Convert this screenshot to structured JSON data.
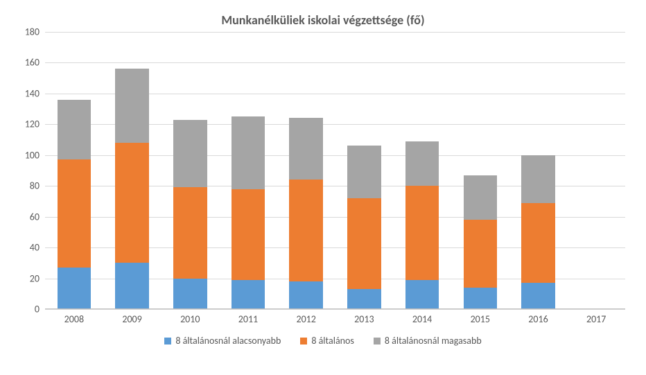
{
  "chart": {
    "type": "stacked-bar",
    "title": "Munkanélküliek iskolai végzettsége (fő)",
    "title_fontsize": 18,
    "title_fontweight": "bold",
    "background_color": "#ffffff",
    "grid_color": "#d9d9d9",
    "axis_color": "#bfbfbf",
    "text_color": "#595959",
    "label_fontsize": 14,
    "ylim": [
      0,
      180
    ],
    "ytick_step": 20,
    "yticks": [
      0,
      20,
      40,
      60,
      80,
      100,
      120,
      140,
      160,
      180
    ],
    "categories": [
      "2008",
      "2009",
      "2010",
      "2011",
      "2012",
      "2013",
      "2014",
      "2015",
      "2016",
      "2017"
    ],
    "bar_width": 0.58,
    "series": [
      {
        "key": "low",
        "label": "8 általánosnál alacsonyabb",
        "color": "#5b9bd5"
      },
      {
        "key": "mid",
        "label": "8 általános",
        "color": "#ed7d31"
      },
      {
        "key": "high",
        "label": "8 általánosnál magasabb",
        "color": "#a5a5a5"
      }
    ],
    "data": [
      {
        "low": 27,
        "mid": 70,
        "high": 39
      },
      {
        "low": 30,
        "mid": 78,
        "high": 48
      },
      {
        "low": 20,
        "mid": 59,
        "high": 44
      },
      {
        "low": 19,
        "mid": 59,
        "high": 47
      },
      {
        "low": 18,
        "mid": 66,
        "high": 40
      },
      {
        "low": 13,
        "mid": 59,
        "high": 34
      },
      {
        "low": 19,
        "mid": 61,
        "high": 29
      },
      {
        "low": 14,
        "mid": 44,
        "high": 29
      },
      {
        "low": 17,
        "mid": 52,
        "high": 31
      },
      {
        "low": 0,
        "mid": 0,
        "high": 0
      }
    ],
    "legend_position": "bottom"
  }
}
